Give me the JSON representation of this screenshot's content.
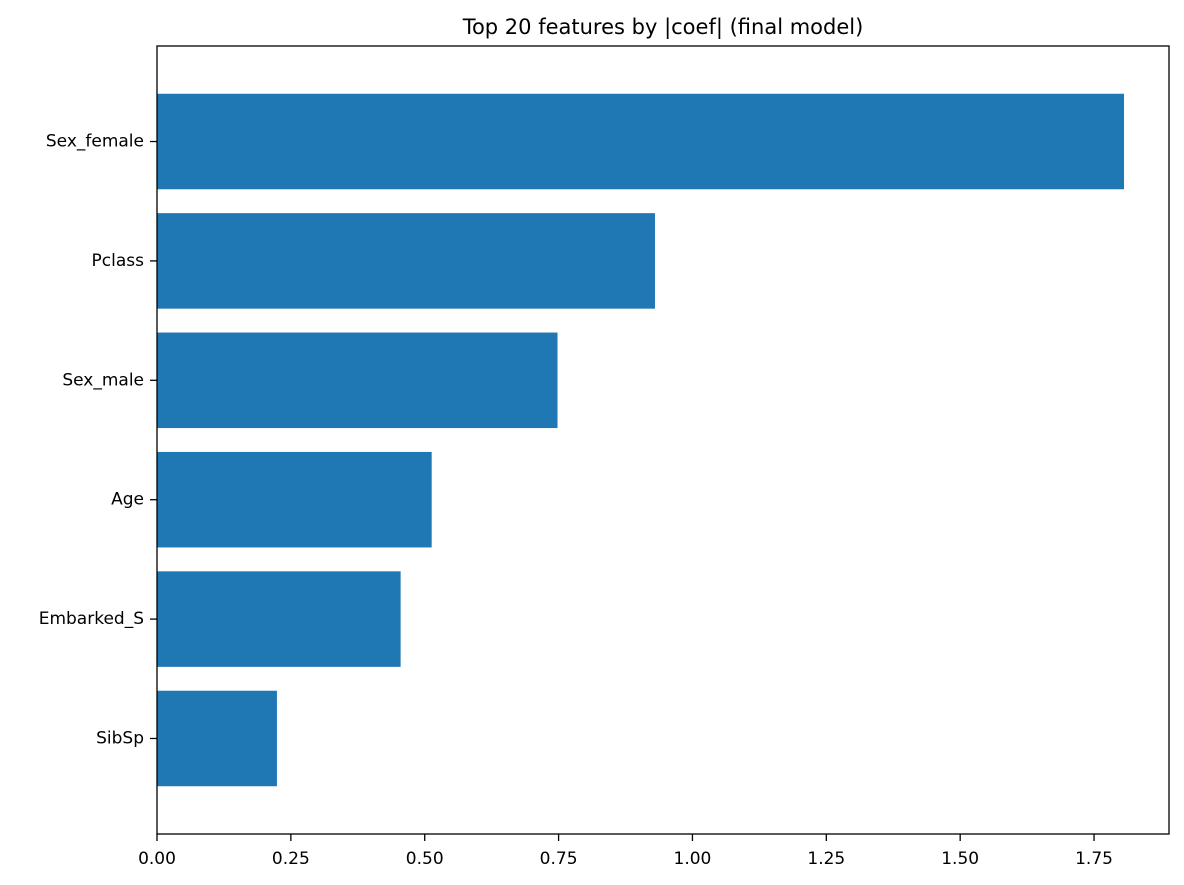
{
  "chart_data": {
    "type": "bar",
    "orientation": "horizontal",
    "title": "Top 20 features by |coef| (final model)",
    "xlabel": "",
    "ylabel": "",
    "categories": [
      "Sex_female",
      "Pclass",
      "Sex_male",
      "Age",
      "Embarked_S",
      "SibSp"
    ],
    "values": [
      1.806,
      0.93,
      0.748,
      0.513,
      0.455,
      0.224
    ],
    "xlim": [
      0,
      1.89
    ],
    "xticks": [
      0.0,
      0.25,
      0.5,
      0.75,
      1.0,
      1.25,
      1.5,
      1.75
    ],
    "xtick_labels": [
      "0.00",
      "0.25",
      "0.50",
      "0.75",
      "1.00",
      "1.25",
      "1.50",
      "1.75"
    ],
    "bar_color": "#1f77b4",
    "grid": false,
    "legend": "none"
  }
}
